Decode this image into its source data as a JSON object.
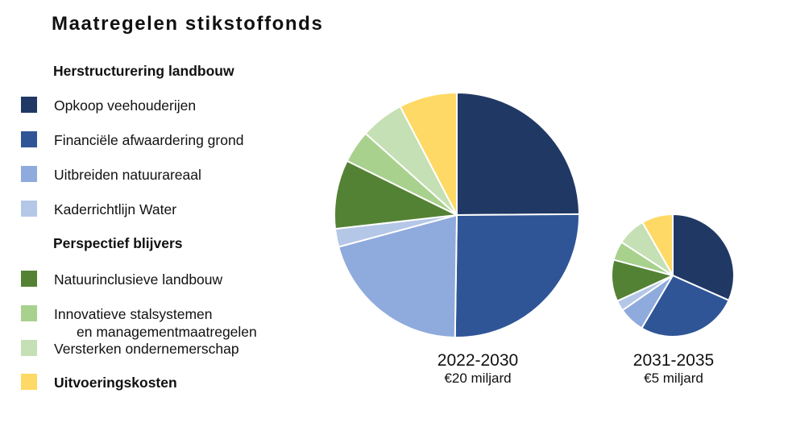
{
  "title": "Maatregelen  stikstoffonds",
  "legend": {
    "groups": [
      {
        "heading": "Herstructurering landbouw",
        "items": [
          0,
          1,
          2,
          3
        ]
      },
      {
        "heading": "Perspectief blijvers",
        "items": [
          4,
          5,
          6
        ]
      },
      {
        "heading": "",
        "items": [
          7
        ]
      }
    ]
  },
  "chart_data": {
    "type": "pie",
    "categories": [
      "Opkoop veehouderijen",
      "Financiële afwaardering grond",
      "Uitbreiden natuurareaal",
      "Kaderrichtlijn Water",
      "Natuurinclusieve landbouw",
      "Innovatieve stalsystemen en managementmaatregelen",
      "Versterken ondernemerschap",
      "Uitvoeringskosten"
    ],
    "category_lines": [
      [
        "Opkoop veehouderijen"
      ],
      [
        "Financiële afwaardering grond"
      ],
      [
        "Uitbreiden natuurareaal"
      ],
      [
        "Kaderrichtlijn Water"
      ],
      [
        "Natuurinclusieve landbouw"
      ],
      [
        "Innovatieve stalsystemen",
        "en managementmaatregelen"
      ],
      [
        "Versterken ondernemerschap"
      ],
      [
        "Uitvoeringskosten"
      ]
    ],
    "category_bold": [
      false,
      false,
      false,
      false,
      false,
      false,
      false,
      true
    ],
    "colors": [
      "#203864",
      "#2F5597",
      "#8FAADC",
      "#B4C7E7",
      "#548235",
      "#A9D18E",
      "#C5E0B4",
      "#FFD966"
    ],
    "pies": [
      {
        "period": "2022-2030",
        "budget": "€20 miljard",
        "values": [
          5.2,
          5.3,
          4.3,
          0.5,
          1.9,
          0.9,
          1.2,
          1.6
        ]
      },
      {
        "period": "2031-2035",
        "budget": "€5 miljard",
        "values": [
          1.38,
          1.17,
          0.3,
          0.12,
          0.48,
          0.22,
          0.33,
          0.36
        ]
      }
    ]
  }
}
